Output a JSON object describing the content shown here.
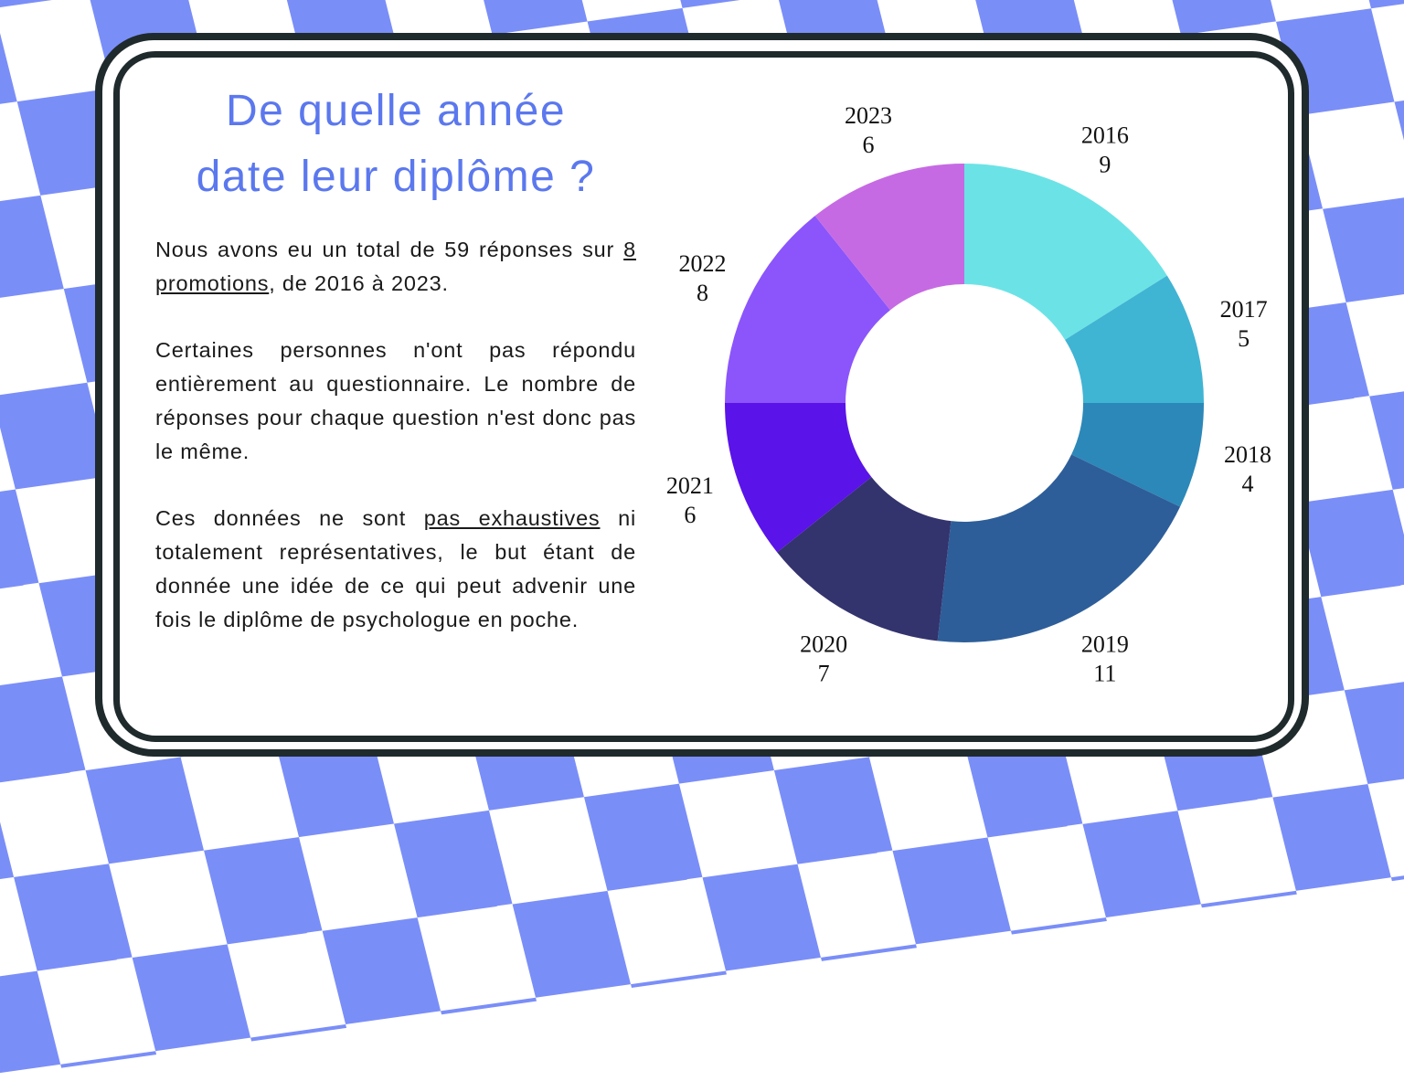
{
  "title_lines": [
    "De quelle année",
    "date leur diplôme ?"
  ],
  "paragraphs": {
    "p1": {
      "before": "Nous avons eu un total de 59 réponses sur ",
      "underlined": "8 promotions",
      "after": ", de 2016 à 2023."
    },
    "p2": {
      "text": "Certaines personnes n'ont pas répondu entièrement au questionnaire. Le nombre de réponses pour chaque question n'est donc pas le même."
    },
    "p3": {
      "before": "Ces données ne sont ",
      "underlined": "pas exhaustives",
      "after": " ni totalement représentatives, le but étant de donnée une idée de ce qui peut advenir une fois le diplôme de psychologue en poche."
    }
  },
  "colors": {
    "accent": "#5b78ee",
    "background_check": "#7a8ef8",
    "frame": "#1f2a2c"
  },
  "chart_data": {
    "type": "pie",
    "donut": true,
    "start": "top",
    "direction": "clockwise",
    "categories": [
      "2016",
      "2017",
      "2018",
      "2019",
      "2020",
      "2021",
      "2022",
      "2023"
    ],
    "values": [
      9,
      5,
      4,
      11,
      7,
      6,
      8,
      6
    ],
    "colors": [
      "#6be3e6",
      "#40b4d3",
      "#2c88b8",
      "#2d5e99",
      "#33336e",
      "#5a13e8",
      "#8b55fb",
      "#c66ae3"
    ],
    "labels": "category and value outside each slice"
  }
}
